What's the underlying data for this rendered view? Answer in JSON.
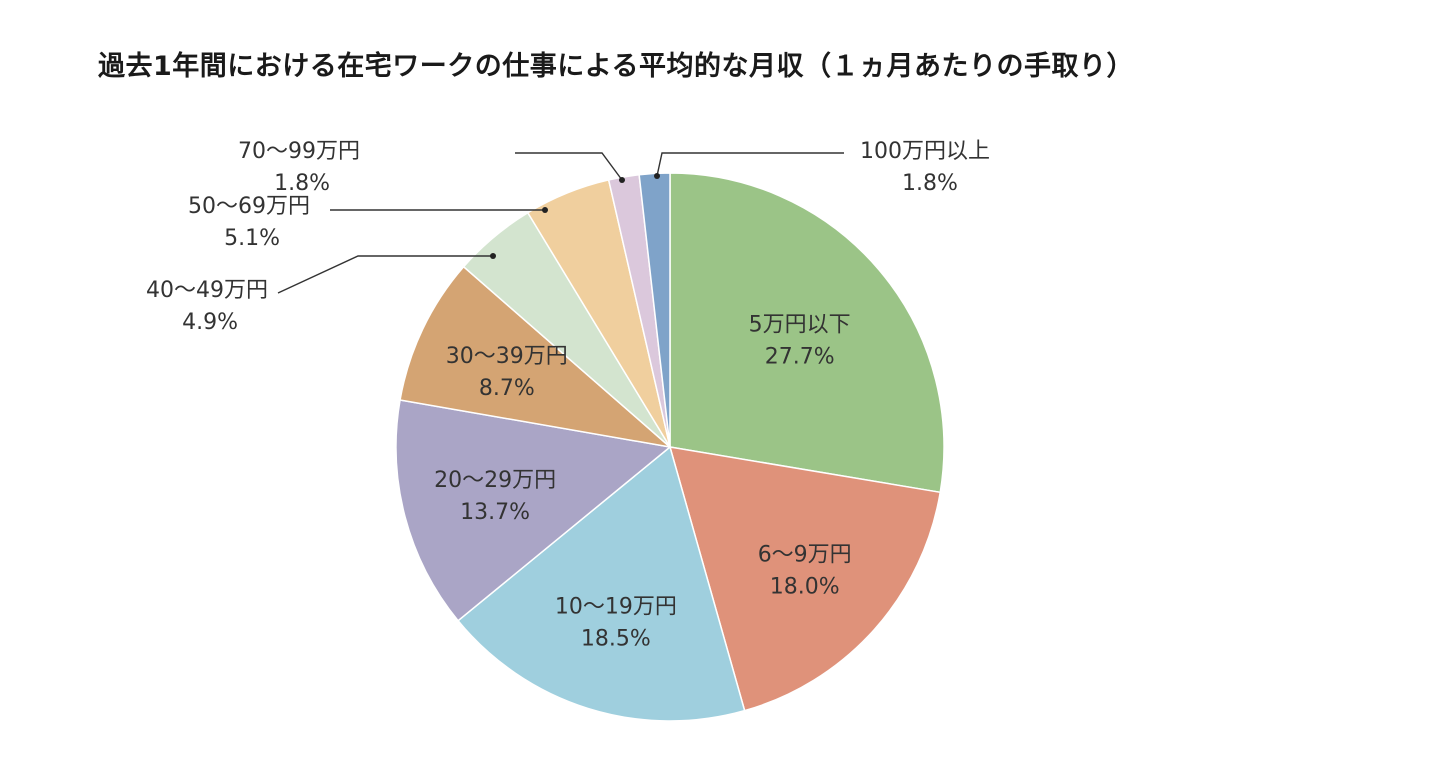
{
  "title": "過去1年間における在宅ワークの仕事による平均的な月収（１ヵ月あたりの手取り）",
  "chart_data": {
    "type": "pie",
    "title": "過去1年間における在宅ワークの仕事による平均的な月収（１ヵ月あたりの手取り）",
    "unit": "%",
    "start": "12 o'clock",
    "direction": "clockwise",
    "slices": [
      {
        "label": "5万円以下",
        "value": 27.7,
        "value_label": "27.7%",
        "color": "#9bc487",
        "label_position": "inside"
      },
      {
        "label": "6〜9万円",
        "value": 18.0,
        "value_label": "18.0%",
        "color": "#df927a",
        "label_position": "inside"
      },
      {
        "label": "10〜19万円",
        "value": 18.5,
        "value_label": "18.5%",
        "color": "#9fcfde",
        "label_position": "inside"
      },
      {
        "label": "20〜29万円",
        "value": 13.7,
        "value_label": "13.7%",
        "color": "#aaa5c6",
        "label_position": "inside"
      },
      {
        "label": "30〜39万円",
        "value": 8.7,
        "value_label": "8.7%",
        "color": "#d4a473",
        "label_position": "inside"
      },
      {
        "label": "40〜49万円",
        "value": 4.9,
        "value_label": "4.9%",
        "color": "#d3e4cf",
        "label_position": "outside-left"
      },
      {
        "label": "50〜69万円",
        "value": 5.1,
        "value_label": "5.1%",
        "color": "#f0cf9e",
        "label_position": "outside-left"
      },
      {
        "label": "70〜99万円",
        "value": 1.8,
        "value_label": "1.8%",
        "color": "#dbc8dc",
        "label_position": "outside-left"
      },
      {
        "label": "100万円以上",
        "value": 1.8,
        "value_label": "1.8%",
        "color": "#7fa3c9",
        "label_position": "outside-right"
      }
    ]
  }
}
